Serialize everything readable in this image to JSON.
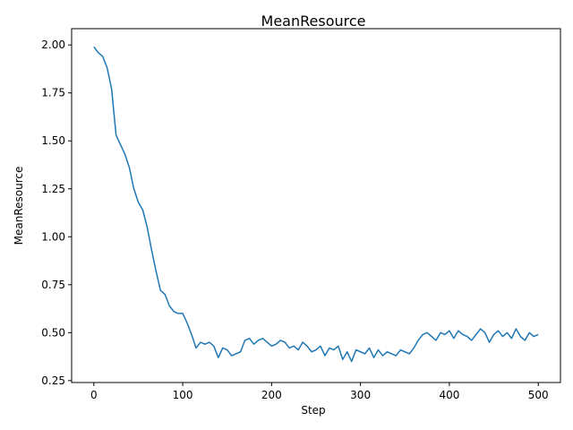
{
  "chart_data": {
    "type": "line",
    "title": "MeanResource",
    "xlabel": "Step",
    "ylabel": "MeanResource",
    "xlim": [
      -25,
      525
    ],
    "ylim": [
      0.24,
      2.085
    ],
    "xticks": [
      0,
      100,
      200,
      300,
      400,
      500
    ],
    "xtick_labels": [
      "0",
      "100",
      "200",
      "300",
      "400",
      "500"
    ],
    "yticks": [
      0.25,
      0.5,
      0.75,
      1.0,
      1.25,
      1.5,
      1.75,
      2.0
    ],
    "ytick_labels": [
      "0.25",
      "0.50",
      "0.75",
      "1.00",
      "1.25",
      "1.50",
      "1.75",
      "2.00"
    ],
    "grid": false,
    "series": [
      {
        "color": "#1f77b4",
        "x": [
          0,
          5,
          10,
          15,
          20,
          25,
          30,
          35,
          40,
          45,
          50,
          55,
          60,
          65,
          70,
          75,
          80,
          85,
          90,
          95,
          100,
          105,
          110,
          115,
          120,
          125,
          130,
          135,
          140,
          145,
          150,
          155,
          160,
          165,
          170,
          175,
          180,
          185,
          190,
          195,
          200,
          205,
          210,
          215,
          220,
          225,
          230,
          235,
          240,
          245,
          250,
          255,
          260,
          265,
          270,
          275,
          280,
          285,
          290,
          295,
          300,
          305,
          310,
          315,
          320,
          325,
          330,
          335,
          340,
          345,
          350,
          355,
          360,
          365,
          370,
          375,
          380,
          385,
          390,
          395,
          400,
          405,
          410,
          415,
          420,
          425,
          430,
          435,
          440,
          445,
          450,
          455,
          460,
          465,
          470,
          475,
          480,
          485,
          490,
          495,
          500
        ],
        "y": [
          1.99,
          1.96,
          1.94,
          1.88,
          1.77,
          1.53,
          1.48,
          1.43,
          1.36,
          1.25,
          1.18,
          1.14,
          1.05,
          0.93,
          0.82,
          0.72,
          0.7,
          0.64,
          0.61,
          0.6,
          0.6,
          0.55,
          0.49,
          0.42,
          0.45,
          0.44,
          0.45,
          0.43,
          0.37,
          0.42,
          0.41,
          0.38,
          0.39,
          0.4,
          0.46,
          0.47,
          0.44,
          0.46,
          0.47,
          0.45,
          0.43,
          0.44,
          0.46,
          0.45,
          0.42,
          0.43,
          0.41,
          0.45,
          0.43,
          0.4,
          0.41,
          0.43,
          0.38,
          0.42,
          0.41,
          0.43,
          0.36,
          0.4,
          0.35,
          0.41,
          0.4,
          0.39,
          0.42,
          0.37,
          0.41,
          0.38,
          0.4,
          0.39,
          0.38,
          0.41,
          0.4,
          0.39,
          0.42,
          0.46,
          0.49,
          0.5,
          0.48,
          0.46,
          0.5,
          0.49,
          0.51,
          0.47,
          0.51,
          0.49,
          0.48,
          0.46,
          0.49,
          0.52,
          0.5,
          0.45,
          0.49,
          0.51,
          0.48,
          0.5,
          0.47,
          0.52,
          0.48,
          0.46,
          0.5,
          0.48,
          0.49
        ]
      }
    ]
  }
}
